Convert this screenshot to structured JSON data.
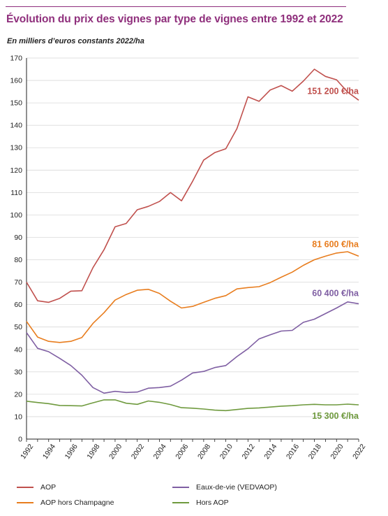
{
  "title": "Évolution du prix des vignes par type de vignes entre 1992 et 2022",
  "subtitle": "En milliers d’euros constants 2022/ha",
  "colors": {
    "aop": "#c0504d",
    "aop_hors_champagne": "#e87d1e",
    "eaux_de_vie": "#7f5fa3",
    "hors_aop": "#6f9a3e",
    "title": "#8f2f7c"
  },
  "chart_data": {
    "type": "line",
    "title": "Évolution du prix des vignes par type de vignes entre 1992 et 2022",
    "ylabel": "En milliers d’euros constants 2022/ha",
    "xlabel": "",
    "x": [
      1992,
      1993,
      1994,
      1995,
      1996,
      1997,
      1998,
      1999,
      2000,
      2001,
      2002,
      2003,
      2004,
      2005,
      2006,
      2007,
      2008,
      2009,
      2010,
      2011,
      2012,
      2013,
      2014,
      2015,
      2016,
      2017,
      2018,
      2019,
      2020,
      2021,
      2022
    ],
    "xticks": [
      "1992",
      "1994",
      "1996",
      "1998",
      "2000",
      "2002",
      "2004",
      "2006",
      "2008",
      "2010",
      "2012",
      "2014",
      "2016",
      "2018",
      "2020",
      "2022"
    ],
    "ylim": [
      0,
      170
    ],
    "yticks": [
      "0",
      "10",
      "20",
      "30",
      "40",
      "50",
      "60",
      "70",
      "80",
      "90",
      "100",
      "110",
      "120",
      "130",
      "140",
      "150",
      "160",
      "170"
    ],
    "grid": "horizontal",
    "legend_position": "bottom",
    "series": [
      {
        "name": "AOP",
        "color_key": "aop",
        "values": [
          70,
          61.7,
          61,
          62.8,
          66,
          66.2,
          76.5,
          84.5,
          94.7,
          96.2,
          102.3,
          103.8,
          106,
          110,
          106.3,
          115,
          124.5,
          127.8,
          129.5,
          138.5,
          152.7,
          150.7,
          155.7,
          157.7,
          155.2,
          159.7,
          165,
          161.8,
          160.3,
          154.8,
          151.2
        ],
        "end_label": "151 200 €/ha"
      },
      {
        "name": "AOP hors Champagne",
        "color_key": "aop_hors_champagne",
        "values": [
          52.5,
          45.5,
          43.6,
          43.1,
          43.6,
          45.3,
          51.6,
          56.4,
          62,
          64.5,
          66.4,
          66.8,
          65,
          61.5,
          58.5,
          59.2,
          61,
          62.8,
          64,
          67,
          67.6,
          68,
          69.8,
          72.2,
          74.5,
          77.5,
          80,
          81.6,
          83,
          83.6,
          81.6
        ],
        "end_label": "81 600 €/ha"
      },
      {
        "name": "Eaux-de-vie (VEDVAOP)",
        "color_key": "eaux_de_vie",
        "values": [
          47.5,
          40.5,
          39,
          36,
          32.8,
          28.5,
          23,
          20.5,
          21.3,
          20.8,
          21,
          22.7,
          23,
          23.6,
          26.3,
          29.5,
          30.2,
          31.9,
          32.8,
          36.8,
          40.3,
          44.7,
          46.5,
          48.2,
          48.5,
          52.1,
          53.5,
          56,
          58.5,
          61.2,
          60.4
        ],
        "end_label": "60 400 €/ha"
      },
      {
        "name": "Hors AOP",
        "color_key": "hors_aop",
        "values": [
          16.9,
          16.3,
          15.8,
          15,
          14.9,
          14.8,
          16.2,
          17.5,
          17.5,
          16,
          15.5,
          17,
          16.4,
          15.4,
          14,
          13.8,
          13.4,
          12.9,
          12.7,
          13.2,
          13.7,
          13.9,
          14.3,
          14.7,
          14.9,
          15.3,
          15.5,
          15.3,
          15.3,
          15.6,
          15.3
        ],
        "end_label": "15 300 €/ha"
      }
    ]
  },
  "legend": [
    {
      "label": "AOP",
      "color_key": "aop"
    },
    {
      "label": "Eaux-de-vie (VEDVAOP)",
      "color_key": "eaux_de_vie"
    },
    {
      "label": "AOP hors Champagne",
      "color_key": "aop_hors_champagne"
    },
    {
      "label": "Hors AOP",
      "color_key": "hors_aop"
    }
  ]
}
